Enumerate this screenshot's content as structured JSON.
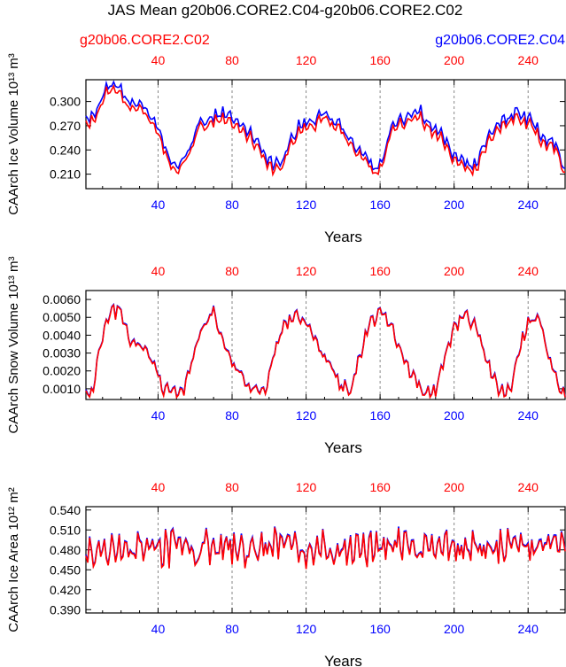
{
  "title": "JAS Mean g20b06.CORE2.C04-g20b06.CORE2.C02",
  "legend": {
    "left_label": "g20b06.CORE2.C02",
    "right_label": "g20b06.CORE2.C04"
  },
  "colors": {
    "case_c02": "#ff0000",
    "case_c04": "#0000ff",
    "axis": "#000000",
    "gridline": "#888888"
  },
  "chart_data": [
    {
      "type": "line",
      "name": "ice-volume",
      "ylabel": "CAArch Ice Volume 10^13 m^3",
      "xlabel": "Years",
      "xlim": [
        1,
        260
      ],
      "ylim": [
        0.192,
        0.327
      ],
      "xticks": [
        40,
        80,
        120,
        160,
        200,
        240
      ],
      "xtick_labels": [
        "40",
        "80",
        "120",
        "160",
        "200",
        "240"
      ],
      "yticks": [
        0.21,
        0.24,
        0.27,
        0.3
      ],
      "ytick_labels": [
        "0.210",
        "0.240",
        "0.270",
        "0.300"
      ],
      "grid_x_dashed": true,
      "baseline": [
        [
          1,
          0.27
        ],
        [
          6,
          0.28
        ],
        [
          12,
          0.31
        ],
        [
          16,
          0.318
        ],
        [
          20,
          0.312
        ],
        [
          24,
          0.29
        ],
        [
          30,
          0.296
        ],
        [
          35,
          0.275
        ],
        [
          40,
          0.262
        ],
        [
          45,
          0.228
        ],
        [
          50,
          0.212
        ],
        [
          56,
          0.232
        ],
        [
          62,
          0.268
        ],
        [
          70,
          0.275
        ],
        [
          78,
          0.28
        ],
        [
          83,
          0.268
        ],
        [
          90,
          0.255
        ],
        [
          96,
          0.235
        ],
        [
          102,
          0.214
        ],
        [
          108,
          0.225
        ],
        [
          116,
          0.262
        ],
        [
          124,
          0.272
        ],
        [
          130,
          0.278
        ],
        [
          136,
          0.272
        ],
        [
          140,
          0.262
        ],
        [
          146,
          0.238
        ],
        [
          152,
          0.232
        ],
        [
          157,
          0.208
        ],
        [
          161,
          0.22
        ],
        [
          166,
          0.262
        ],
        [
          174,
          0.275
        ],
        [
          182,
          0.278
        ],
        [
          188,
          0.262
        ],
        [
          194,
          0.252
        ],
        [
          198,
          0.232
        ],
        [
          204,
          0.228
        ],
        [
          208,
          0.212
        ],
        [
          212,
          0.218
        ],
        [
          218,
          0.252
        ],
        [
          228,
          0.275
        ],
        [
          236,
          0.278
        ],
        [
          242,
          0.272
        ],
        [
          248,
          0.245
        ],
        [
          254,
          0.245
        ],
        [
          260,
          0.208
        ]
      ],
      "variability": [
        0.012,
        0.008
      ],
      "offset_blue": 0.007
    },
    {
      "type": "line",
      "name": "snow-volume",
      "ylabel": "CAArch Snow Volume 10^13 m^3",
      "xlabel": "Years",
      "xlim": [
        1,
        260
      ],
      "ylim": [
        0.0004,
        0.0065
      ],
      "xticks": [
        40,
        80,
        120,
        160,
        200,
        240
      ],
      "xtick_labels": [
        "40",
        "80",
        "120",
        "160",
        "200",
        "240"
      ],
      "yticks": [
        0.001,
        0.002,
        0.003,
        0.004,
        0.005,
        0.006
      ],
      "ytick_labels": [
        "0.0010",
        "0.0020",
        "0.0030",
        "0.0040",
        "0.0050",
        "0.0060"
      ],
      "grid_x_dashed": true,
      "baseline": [
        [
          1,
          0.0008
        ],
        [
          5,
          0.0009
        ],
        [
          8,
          0.003
        ],
        [
          12,
          0.0048
        ],
        [
          16,
          0.0054
        ],
        [
          20,
          0.0052
        ],
        [
          24,
          0.0038
        ],
        [
          30,
          0.0032
        ],
        [
          36,
          0.0028
        ],
        [
          42,
          0.0011
        ],
        [
          48,
          0.0007
        ],
        [
          54,
          0.0008
        ],
        [
          58,
          0.0025
        ],
        [
          64,
          0.0045
        ],
        [
          70,
          0.0052
        ],
        [
          74,
          0.0042
        ],
        [
          80,
          0.0022
        ],
        [
          86,
          0.0017
        ],
        [
          92,
          0.0008
        ],
        [
          98,
          0.0008
        ],
        [
          102,
          0.0028
        ],
        [
          108,
          0.0045
        ],
        [
          114,
          0.0051
        ],
        [
          120,
          0.0048
        ],
        [
          126,
          0.0035
        ],
        [
          132,
          0.0025
        ],
        [
          138,
          0.0012
        ],
        [
          144,
          0.0008
        ],
        [
          148,
          0.0025
        ],
        [
          154,
          0.0045
        ],
        [
          160,
          0.0052
        ],
        [
          166,
          0.0045
        ],
        [
          172,
          0.0028
        ],
        [
          178,
          0.0017
        ],
        [
          184,
          0.0008
        ],
        [
          190,
          0.0009
        ],
        [
          195,
          0.0028
        ],
        [
          200,
          0.0045
        ],
        [
          206,
          0.0051
        ],
        [
          212,
          0.0045
        ],
        [
          218,
          0.0025
        ],
        [
          224,
          0.0011
        ],
        [
          230,
          0.0008
        ],
        [
          234,
          0.0028
        ],
        [
          240,
          0.0046
        ],
        [
          246,
          0.005
        ],
        [
          250,
          0.0032
        ],
        [
          256,
          0.0012
        ],
        [
          260,
          0.0007
        ]
      ],
      "variability": [
        0.0006,
        0.0004
      ],
      "offset_blue": 5e-05
    },
    {
      "type": "line",
      "name": "ice-area",
      "ylabel": "CAArch Ice Area 10^12 m^2",
      "xlabel": "Years",
      "xlim": [
        1,
        260
      ],
      "ylim": [
        0.385,
        0.545
      ],
      "xticks": [
        40,
        80,
        120,
        160,
        200,
        240
      ],
      "xtick_labels": [
        "40",
        "80",
        "120",
        "160",
        "200",
        "240"
      ],
      "yticks": [
        0.39,
        0.42,
        0.45,
        0.48,
        0.51,
        0.54
      ],
      "ytick_labels": [
        "0.390",
        "0.420",
        "0.450",
        "0.480",
        "0.510",
        "0.540"
      ],
      "grid_x_dashed": true,
      "baseline": [
        [
          1,
          0.482
        ],
        [
          260,
          0.482
        ]
      ],
      "variability": [
        0.045,
        0.02
      ],
      "offset_blue": 0.002
    }
  ]
}
